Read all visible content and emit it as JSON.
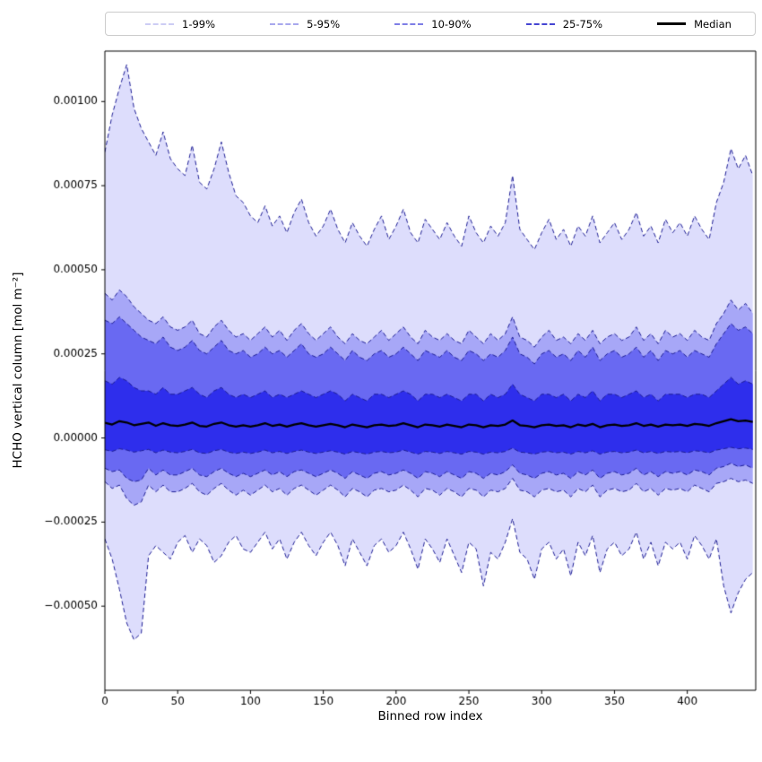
{
  "chart_data": {
    "type": "area",
    "title": "",
    "xlabel": "Binned row index",
    "ylabel": "HCHO vertical column [mol m⁻²]",
    "grid": false,
    "legend_position": "top",
    "xlim": [
      0,
      447
    ],
    "ylim": [
      -0.00075,
      0.00115
    ],
    "x_ticks": {
      "values": [
        0,
        50,
        100,
        150,
        200,
        250,
        300,
        350,
        400
      ],
      "labels": [
        "0",
        "50",
        "100",
        "150",
        "200",
        "250",
        "300",
        "350",
        "400"
      ]
    },
    "y_ticks": {
      "values": [
        -0.0005,
        -0.00025,
        0.0,
        0.00025,
        0.0005,
        0.00075,
        0.001
      ],
      "labels": [
        "−0.00050",
        "−0.00025",
        "0.00000",
        "0.00025",
        "0.00050",
        "0.00075",
        "0.00100"
      ]
    },
    "unit_scale": 1e-05,
    "x": [
      0,
      5,
      10,
      15,
      20,
      25,
      30,
      35,
      40,
      45,
      50,
      55,
      60,
      65,
      70,
      75,
      80,
      85,
      90,
      95,
      100,
      105,
      110,
      115,
      120,
      125,
      130,
      135,
      140,
      145,
      150,
      155,
      160,
      165,
      170,
      175,
      180,
      185,
      190,
      195,
      200,
      205,
      210,
      215,
      220,
      225,
      230,
      235,
      240,
      245,
      250,
      255,
      260,
      265,
      270,
      275,
      280,
      285,
      290,
      295,
      300,
      305,
      310,
      315,
      320,
      325,
      330,
      335,
      340,
      345,
      350,
      355,
      360,
      365,
      370,
      375,
      380,
      385,
      390,
      395,
      400,
      405,
      410,
      415,
      420,
      425,
      430,
      435,
      440,
      445
    ],
    "bands": [
      {
        "label": "1-99%",
        "lower_key": "p1",
        "upper_key": "p99",
        "fill": "rgba(30,30,235,0.15)",
        "line_color": "#1e1e96",
        "legend_color": "#cdcdf4"
      },
      {
        "label": "5-95%",
        "lower_key": "p5",
        "upper_key": "p95",
        "fill": "rgba(30,30,235,0.28)",
        "line_color": "#1e1e96",
        "legend_color": "#a8a8ed"
      },
      {
        "label": "10-90%",
        "lower_key": "p10",
        "upper_key": "p90",
        "fill": "rgba(30,30,235,0.45)",
        "line_color": "#1e1e96",
        "legend_color": "#7e7ee6"
      },
      {
        "label": "25-75%",
        "lower_key": "p25",
        "upper_key": "p75",
        "fill": "rgba(30,30,235,0.78)",
        "line_color": "#1e1e96",
        "legend_color": "#4545d2"
      }
    ],
    "median": {
      "label": "Median",
      "series_key": "p50",
      "color": "#000000",
      "width": 2.3
    },
    "series": {
      "p99": [
        85,
        96,
        104,
        111,
        98,
        92,
        88,
        84,
        91,
        83,
        80,
        78,
        87,
        76,
        74,
        80,
        88,
        79,
        72,
        70,
        66,
        64,
        69,
        63,
        66,
        61,
        67,
        71,
        64,
        60,
        63,
        68,
        62,
        58,
        64,
        60,
        57,
        62,
        66,
        59,
        63,
        68,
        61,
        58,
        65,
        62,
        59,
        64,
        60,
        57,
        66,
        61,
        58,
        63,
        60,
        64,
        78,
        62,
        59,
        56,
        61,
        65,
        59,
        62,
        57,
        63,
        60,
        66,
        58,
        61,
        64,
        59,
        62,
        67,
        60,
        63,
        58,
        65,
        61,
        64,
        60,
        66,
        62,
        59,
        70,
        76,
        86,
        80,
        84,
        78
      ],
      "p95": [
        43,
        41,
        44,
        42,
        39,
        37,
        35,
        34,
        36,
        33,
        32,
        33,
        35,
        31,
        30,
        33,
        35,
        32,
        30,
        31,
        29,
        31,
        33,
        30,
        32,
        29,
        32,
        34,
        31,
        29,
        31,
        33,
        30,
        28,
        31,
        29,
        28,
        30,
        32,
        29,
        31,
        33,
        30,
        28,
        32,
        30,
        29,
        31,
        29,
        28,
        32,
        30,
        28,
        31,
        29,
        31,
        36,
        30,
        29,
        27,
        30,
        32,
        29,
        30,
        28,
        31,
        29,
        32,
        28,
        30,
        31,
        29,
        30,
        33,
        29,
        31,
        28,
        32,
        30,
        31,
        29,
        32,
        30,
        29,
        34,
        37,
        41,
        38,
        40,
        37
      ],
      "p90": [
        35,
        34,
        36,
        34,
        32,
        30,
        29,
        28,
        30,
        27,
        26,
        27,
        29,
        26,
        25,
        27,
        29,
        26,
        25,
        26,
        24,
        25,
        27,
        25,
        26,
        24,
        26,
        28,
        25,
        24,
        25,
        27,
        25,
        23,
        26,
        24,
        23,
        25,
        26,
        24,
        25,
        27,
        25,
        23,
        26,
        25,
        24,
        26,
        24,
        23,
        26,
        25,
        23,
        25,
        24,
        26,
        30,
        25,
        24,
        22,
        25,
        26,
        24,
        25,
        23,
        26,
        24,
        27,
        23,
        25,
        26,
        24,
        25,
        27,
        24,
        26,
        23,
        26,
        25,
        26,
        24,
        26,
        25,
        24,
        28,
        31,
        34,
        32,
        33,
        31
      ],
      "p75": [
        17,
        16,
        18,
        17,
        15,
        14,
        14,
        13,
        15,
        13,
        13,
        14,
        15,
        13,
        12,
        14,
        15,
        13,
        12,
        13,
        12,
        13,
        14,
        12,
        13,
        12,
        13,
        14,
        13,
        12,
        13,
        14,
        13,
        11,
        13,
        12,
        11,
        13,
        13,
        12,
        13,
        14,
        13,
        11,
        13,
        13,
        12,
        13,
        12,
        11,
        13,
        13,
        11,
        13,
        12,
        13,
        16,
        13,
        12,
        11,
        13,
        13,
        12,
        13,
        11,
        13,
        12,
        14,
        11,
        13,
        13,
        12,
        13,
        14,
        12,
        13,
        11,
        13,
        13,
        13,
        12,
        13,
        13,
        12,
        14,
        16,
        18,
        16,
        17,
        16
      ],
      "p50": [
        4.5,
        4,
        5,
        4.6,
        3.8,
        4.2,
        4.6,
        3.6,
        4.4,
        3.8,
        3.6,
        4,
        4.6,
        3.6,
        3.4,
        4.2,
        4.6,
        3.8,
        3.4,
        3.8,
        3.4,
        3.8,
        4.4,
        3.6,
        4,
        3.4,
        4,
        4.4,
        3.8,
        3.4,
        3.8,
        4.2,
        3.8,
        3.2,
        4,
        3.6,
        3.2,
        3.8,
        4,
        3.6,
        3.8,
        4.4,
        3.8,
        3.2,
        4,
        3.8,
        3.4,
        4,
        3.6,
        3.2,
        4,
        3.8,
        3.2,
        3.8,
        3.6,
        4,
        5.2,
        3.8,
        3.6,
        3.2,
        3.8,
        4,
        3.6,
        3.8,
        3.2,
        4,
        3.6,
        4.2,
        3.2,
        3.8,
        4,
        3.6,
        3.8,
        4.4,
        3.6,
        4,
        3.4,
        4,
        3.8,
        4,
        3.6,
        4.2,
        4,
        3.6,
        4.4,
        5,
        5.6,
        5,
        5.2,
        4.8
      ],
      "p25": [
        -3.5,
        -4,
        -3.2,
        -3.6,
        -4.2,
        -3.8,
        -3.4,
        -4.4,
        -3.6,
        -4.2,
        -4.4,
        -4,
        -3.4,
        -4.4,
        -4.6,
        -3.8,
        -3.4,
        -4.2,
        -4.6,
        -4.2,
        -4.6,
        -4.2,
        -3.6,
        -4.4,
        -4,
        -4.6,
        -4,
        -3.6,
        -4.2,
        -4.6,
        -4.2,
        -3.8,
        -4.2,
        -4.8,
        -4,
        -4.4,
        -4.8,
        -4.2,
        -4,
        -4.4,
        -4.2,
        -3.6,
        -4.2,
        -4.8,
        -4,
        -4.2,
        -4.6,
        -4,
        -4.4,
        -4.8,
        -4,
        -4.2,
        -4.8,
        -4.2,
        -4.4,
        -4,
        -3,
        -4.2,
        -4.4,
        -4.8,
        -4.2,
        -4,
        -4.4,
        -4.2,
        -4.8,
        -4,
        -4.4,
        -3.8,
        -4.8,
        -4.2,
        -4,
        -4.4,
        -4.2,
        -3.6,
        -4.4,
        -4,
        -4.6,
        -4,
        -4.2,
        -4,
        -4.4,
        -3.8,
        -4,
        -4.4,
        -3.6,
        -3.2,
        -2.8,
        -3.2,
        -3,
        -3.4
      ],
      "p10": [
        -9,
        -10,
        -9.5,
        -12,
        -13,
        -12.5,
        -9,
        -11,
        -9.5,
        -11,
        -11,
        -10,
        -9,
        -11,
        -11.5,
        -10,
        -9,
        -10.5,
        -11.5,
        -10.5,
        -11.5,
        -10.5,
        -9.5,
        -11,
        -10,
        -11.5,
        -10,
        -9.5,
        -10.5,
        -11.5,
        -10.5,
        -9.5,
        -10.5,
        -12,
        -10,
        -11,
        -12,
        -10.5,
        -10,
        -11,
        -10.5,
        -9.5,
        -10.5,
        -12,
        -10,
        -10.5,
        -11.5,
        -10,
        -11,
        -12,
        -10,
        -10.5,
        -12,
        -10.5,
        -11,
        -10,
        -8,
        -10.5,
        -11,
        -12,
        -10.5,
        -10,
        -11,
        -10.5,
        -12,
        -10,
        -11,
        -9.5,
        -12,
        -10.5,
        -10,
        -11,
        -10.5,
        -9,
        -11,
        -10,
        -11.5,
        -10,
        -10.5,
        -10,
        -11,
        -9.5,
        -10,
        -11,
        -9,
        -8.5,
        -7.5,
        -8.5,
        -8,
        -9
      ],
      "p5": [
        -13,
        -15,
        -14,
        -18,
        -20,
        -19,
        -14,
        -16,
        -14,
        -16,
        -16,
        -15,
        -13.5,
        -16,
        -17,
        -15,
        -13.5,
        -15.5,
        -17,
        -15.5,
        -17,
        -15.5,
        -14,
        -16,
        -15,
        -17,
        -15,
        -14,
        -15.5,
        -17,
        -15.5,
        -14,
        -15.5,
        -17.5,
        -15,
        -16,
        -17.5,
        -15.5,
        -15,
        -16,
        -15.5,
        -14,
        -15.5,
        -17.5,
        -15,
        -15.5,
        -17,
        -15,
        -16,
        -17.5,
        -15,
        -15.5,
        -17.5,
        -15.5,
        -16,
        -15,
        -12,
        -15.5,
        -16,
        -17.5,
        -15.5,
        -15,
        -16,
        -15.5,
        -17.5,
        -15,
        -16,
        -14,
        -17.5,
        -15.5,
        -15,
        -16,
        -15.5,
        -13.5,
        -16,
        -15,
        -17,
        -15,
        -15.5,
        -15,
        -16,
        -14,
        -15,
        -16,
        -13.5,
        -13,
        -12,
        -13,
        -12.5,
        -13.5
      ],
      "p1": [
        -30,
        -36,
        -45,
        -55,
        -60,
        -58,
        -35,
        -32,
        -34,
        -36,
        -31,
        -29,
        -34,
        -30,
        -32,
        -37,
        -35,
        -31,
        -29,
        -33,
        -34,
        -31,
        -28,
        -33,
        -30,
        -36,
        -31,
        -28,
        -32,
        -35,
        -31,
        -28,
        -32,
        -38,
        -30,
        -34,
        -38,
        -32,
        -30,
        -34,
        -32,
        -28,
        -33,
        -39,
        -30,
        -33,
        -37,
        -30,
        -35,
        -40,
        -31,
        -33,
        -44,
        -34,
        -36,
        -31,
        -24,
        -34,
        -36,
        -42,
        -33,
        -31,
        -36,
        -33,
        -41,
        -31,
        -35,
        -29,
        -40,
        -33,
        -31,
        -35,
        -33,
        -28,
        -36,
        -31,
        -38,
        -31,
        -33,
        -31,
        -36,
        -29,
        -32,
        -36,
        -30,
        -44,
        -52,
        -46,
        -42,
        -40
      ]
    }
  }
}
